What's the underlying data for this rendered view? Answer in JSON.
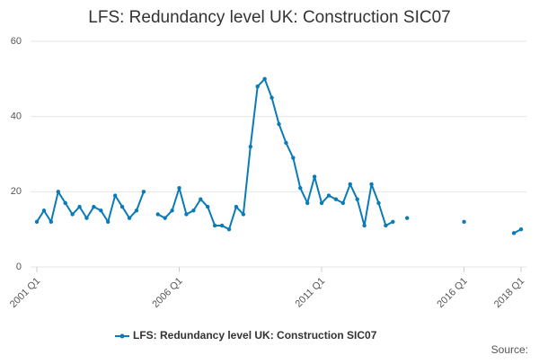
{
  "chart_data": {
    "type": "line",
    "title": "LFS: Redundancy level UK: Construction SIC07",
    "source": "Source:",
    "categories": [
      "2001 Q1",
      null,
      null,
      null,
      null,
      null,
      null,
      null,
      null,
      null,
      null,
      null,
      null,
      null,
      null,
      null,
      null,
      null,
      null,
      null,
      "2006 Q1",
      null,
      null,
      null,
      null,
      null,
      null,
      null,
      null,
      null,
      null,
      null,
      null,
      null,
      null,
      null,
      null,
      null,
      null,
      null,
      "2011 Q1",
      null,
      null,
      null,
      null,
      null,
      null,
      null,
      null,
      null,
      null,
      null,
      null,
      null,
      null,
      null,
      null,
      null,
      null,
      null,
      "2016 Q1",
      null,
      null,
      null,
      null,
      null,
      null,
      null,
      "2018 Q1"
    ],
    "series": [
      {
        "name": "LFS: Redundancy level UK: Construction SIC07",
        "color": "#0b7bb6",
        "values": [
          12,
          15,
          12,
          20,
          17,
          14,
          16,
          13,
          16,
          15,
          12,
          19,
          16,
          13,
          15,
          20,
          null,
          14,
          13,
          15,
          21,
          14,
          15,
          18,
          16,
          11,
          11,
          10,
          16,
          14,
          32,
          48,
          50,
          45,
          38,
          33,
          29,
          21,
          17,
          24,
          17,
          19,
          18,
          17,
          22,
          18,
          11,
          22,
          17,
          11,
          12,
          null,
          13,
          null,
          null,
          null,
          null,
          null,
          null,
          null,
          12,
          null,
          null,
          null,
          null,
          null,
          null,
          9,
          10
        ]
      }
    ],
    "ylim": [
      0,
      60
    ],
    "yticks": [
      0,
      20,
      40,
      60
    ],
    "grid": true
  }
}
